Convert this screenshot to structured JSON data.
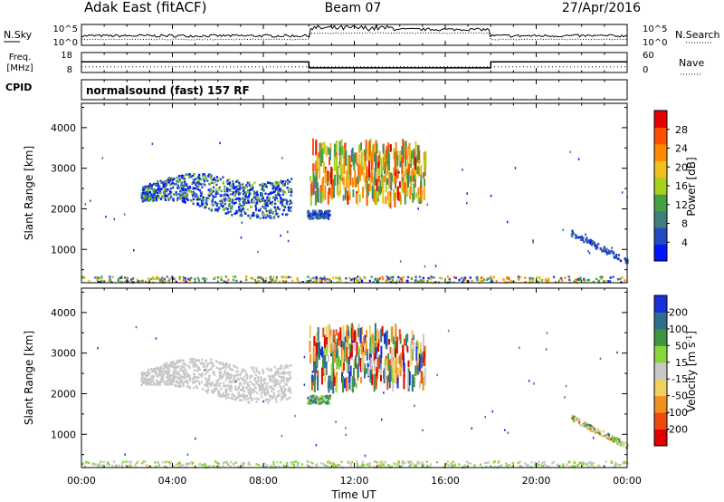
{
  "header": {
    "station": "Adak East (fitACF)",
    "beam": "Beam 07",
    "date": "27/Apr/2016"
  },
  "chart_data": [
    {
      "type": "line",
      "panel": "noise",
      "left_label": "N.Sky",
      "right_label": "N.Search",
      "left_ticks": [
        "10^5",
        "10^0"
      ],
      "right_ticks": [
        "10^5",
        "10^0"
      ],
      "scale": "log",
      "y_range": [
        1,
        100000
      ],
      "note": "Sky noise trace (solid) and search noise trace (dotted) versus time"
    },
    {
      "type": "line",
      "panel": "frequency",
      "left_label": "Freq. [MHz]",
      "right_label": "Nave",
      "left_ticks": [
        "18",
        "8"
      ],
      "right_ticks": [
        "60",
        "0"
      ],
      "y_range": [
        8,
        18
      ],
      "freq_segments_MHz": [
        {
          "start_h": 0,
          "end_h": 10,
          "value": 13.3
        },
        {
          "start_h": 10,
          "end_h": 18,
          "value": 10.3
        },
        {
          "start_h": 18,
          "end_h": 24,
          "value": 13.3
        }
      ],
      "nave_value": 17
    },
    {
      "type": "text",
      "panel": "cpid",
      "label": "CPID",
      "program": "normalsound (fast) 157 RF"
    },
    {
      "type": "heatmap",
      "panel": "power",
      "ylabel": "Slant Range [km]",
      "y_ticks": [
        "1000",
        "2000",
        "3000",
        "4000"
      ],
      "y_range": [
        180,
        4600
      ],
      "colorbar_label": "Power [dB]",
      "colorbar_ticks": [
        "4",
        "8",
        "12",
        "16",
        "20",
        "24",
        "28"
      ],
      "colorbar_range": [
        0,
        32
      ],
      "colors": [
        "#0015ff",
        "#2449c0",
        "#3f7f7f",
        "#46a046",
        "#a8d020",
        "#f0c020",
        "#ff8a00",
        "#ff5000",
        "#e60000"
      ],
      "clusters": [
        {
          "t0": 2.6,
          "t1": 9.2,
          "r0": 1900,
          "r1": 2780,
          "dmin": 2,
          "dmax": 18
        },
        {
          "t0": 9.9,
          "t1": 10.9,
          "r0": 1750,
          "r1": 1950,
          "dmin": 2,
          "dmax": 10
        },
        {
          "t0": 10.0,
          "t1": 15.1,
          "r0": 2200,
          "r1": 3550,
          "dmin": 8,
          "dmax": 30
        },
        {
          "t0": 21.5,
          "t1": 24.0,
          "r0": 700,
          "r1": 1400,
          "dmin": 2,
          "dmax": 10
        },
        {
          "t0": 0.0,
          "t1": 24.0,
          "r0": 180,
          "r1": 330,
          "dmin": 2,
          "dmax": 26
        }
      ]
    },
    {
      "type": "heatmap",
      "panel": "velocity",
      "ylabel": "Slant Range [km]",
      "y_ticks": [
        "1000",
        "2000",
        "3000",
        "4000"
      ],
      "y_range": [
        180,
        4600
      ],
      "colorbar_label": "Velocity [m s^-1]",
      "colorbar_ticks": [
        "200",
        "100",
        "50",
        "15",
        "-15",
        "-50",
        "-100",
        "-200"
      ],
      "colorbar_range": [
        -250,
        250
      ],
      "colors": [
        "#1a2fd6",
        "#2f6f8c",
        "#3f9640",
        "#87d63a",
        "#c8c8c8",
        "#f0d060",
        "#f09020",
        "#ee4a10",
        "#e00000"
      ],
      "clusters": [
        {
          "t0": 2.6,
          "t1": 9.2,
          "r0": 1900,
          "r1": 2780,
          "vmin": -60,
          "vmax": 60
        },
        {
          "t0": 9.9,
          "t1": 10.9,
          "r0": 1750,
          "r1": 1950,
          "vmin": -10,
          "vmax": 220
        },
        {
          "t0": 10.0,
          "t1": 15.1,
          "r0": 2200,
          "r1": 3550,
          "vmin": -250,
          "vmax": 250
        },
        {
          "t0": 21.5,
          "t1": 24.0,
          "r0": 700,
          "r1": 1400,
          "vmin": -150,
          "vmax": 150
        },
        {
          "t0": 0.0,
          "t1": 24.0,
          "r0": 180,
          "r1": 330,
          "vmin": -40,
          "vmax": 80
        }
      ]
    }
  ],
  "x_axis": {
    "label": "Time UT",
    "ticks": [
      "00:00",
      "04:00",
      "08:00",
      "12:00",
      "16:00",
      "20:00",
      "00:00"
    ],
    "range_hours": [
      0,
      24
    ]
  }
}
